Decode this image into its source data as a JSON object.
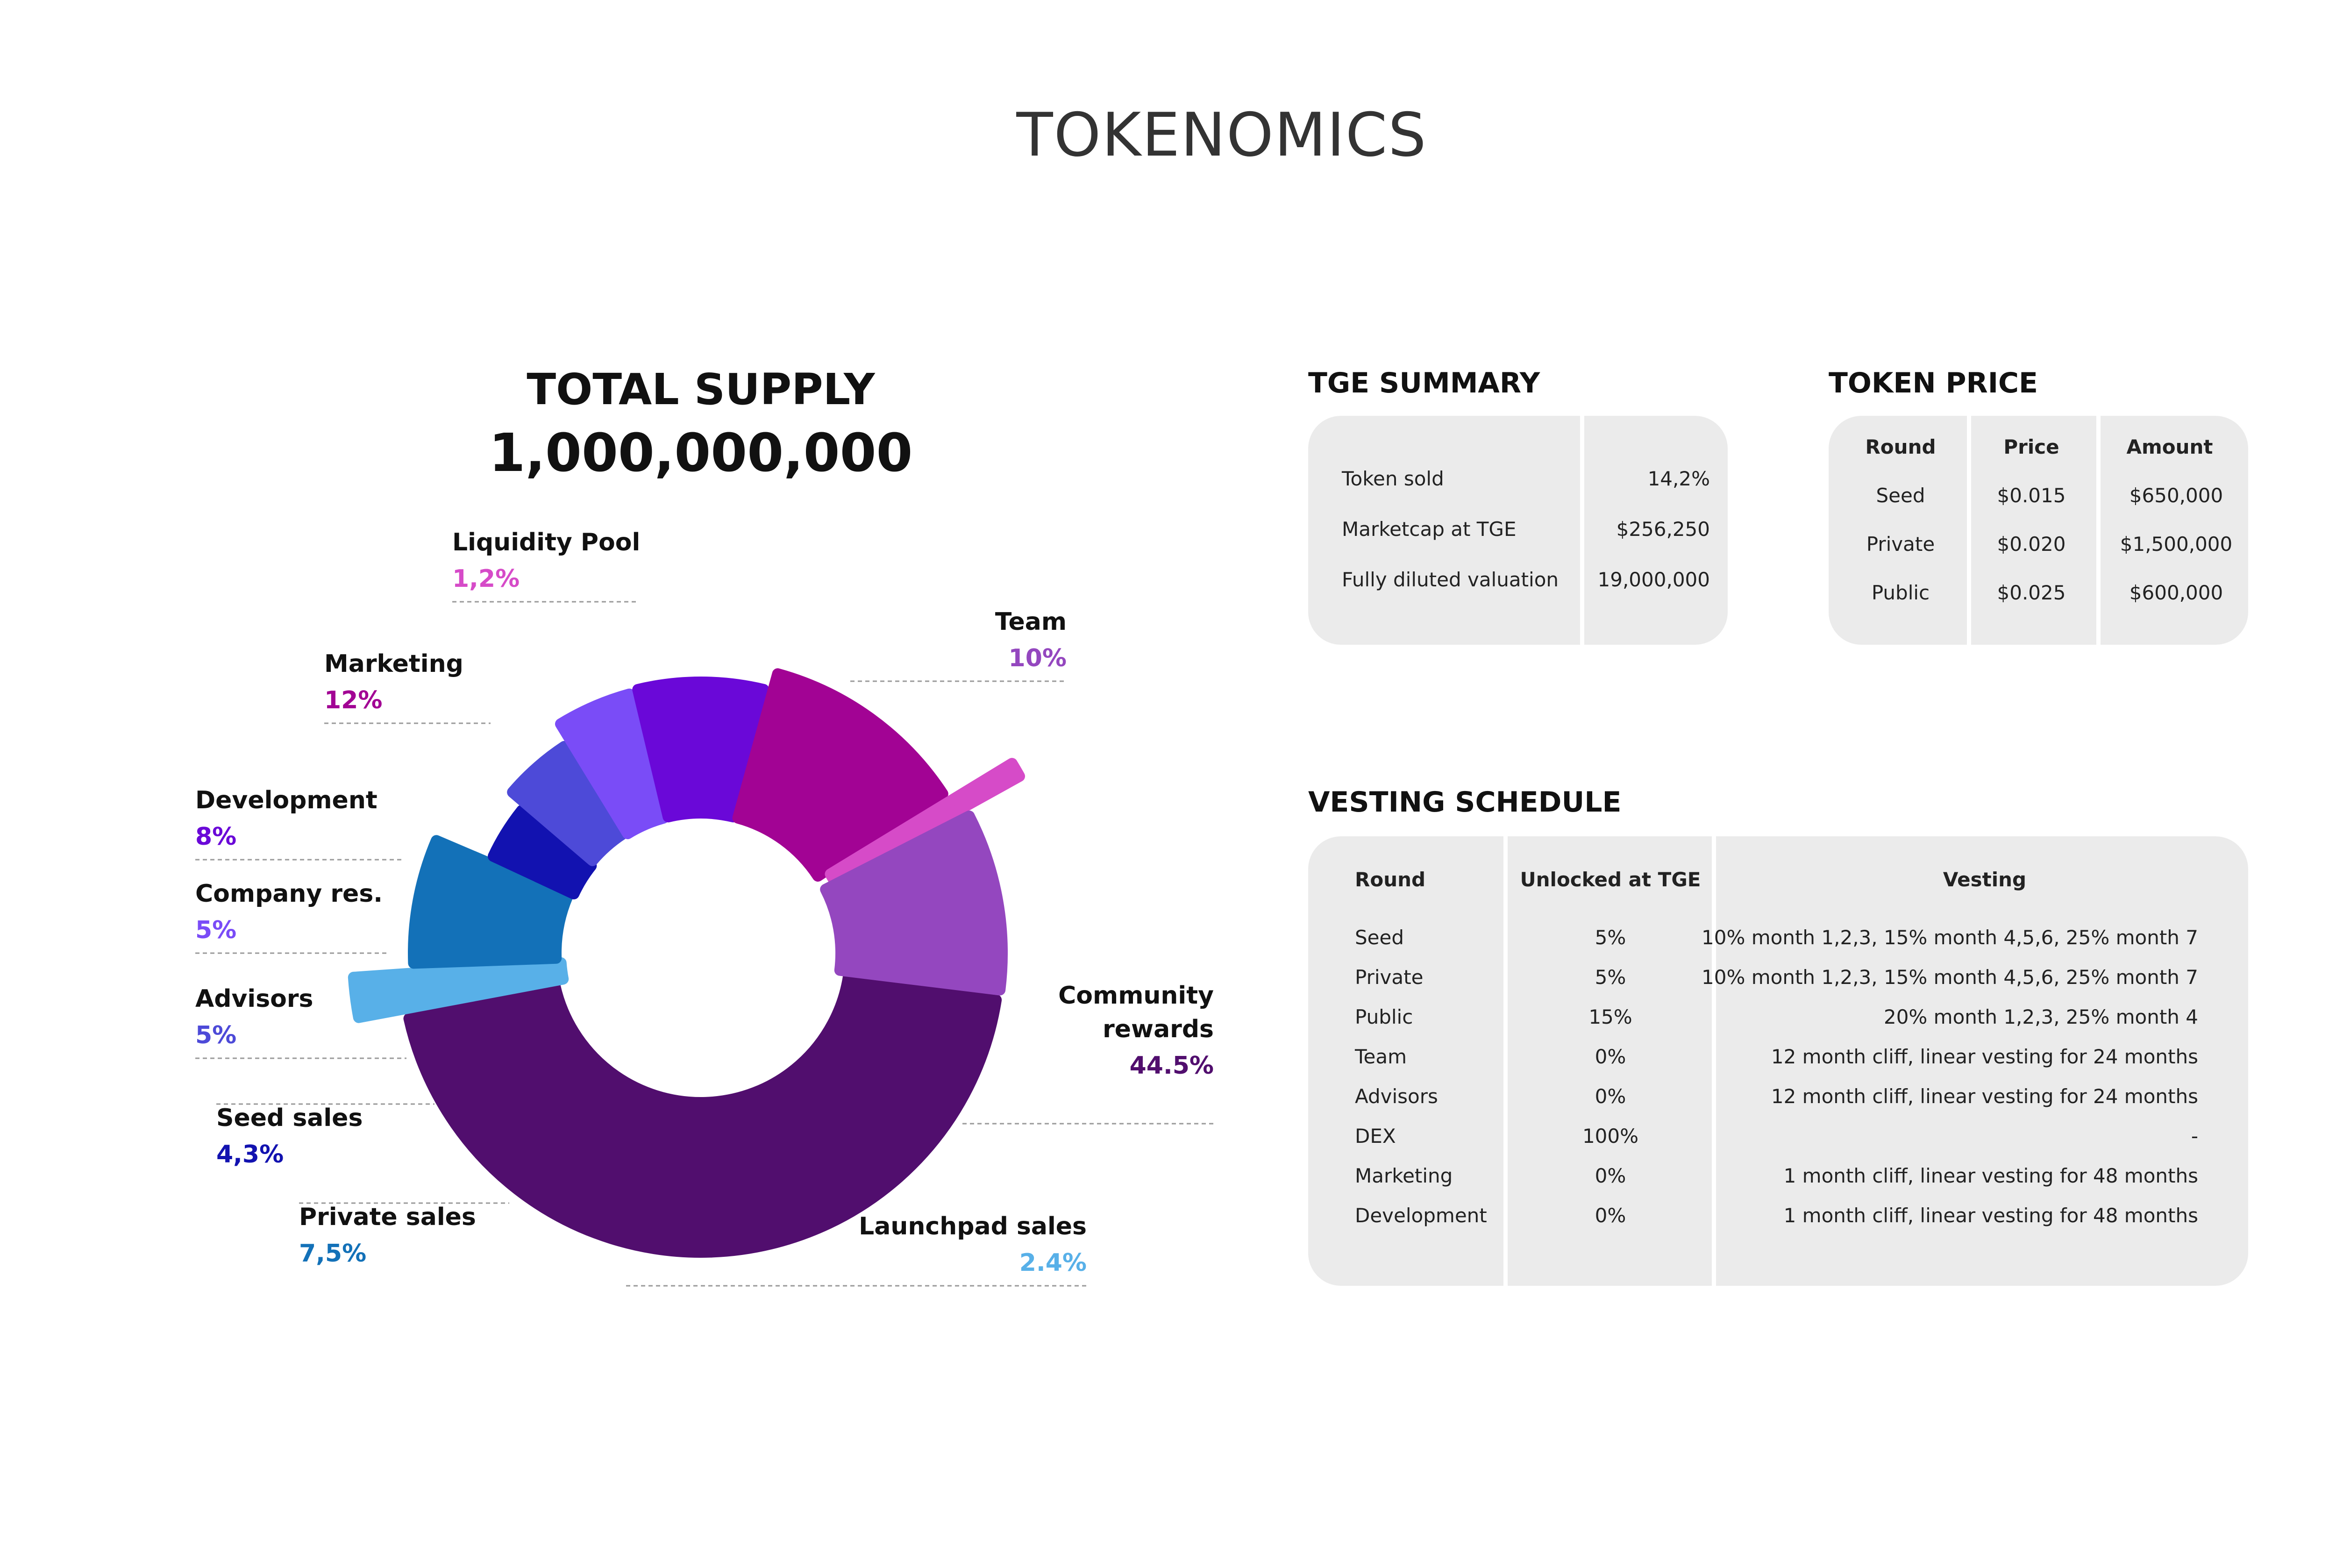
{
  "page": {
    "title": "TOKENOMICS"
  },
  "total_supply": {
    "label": "TOTAL SUPPLY",
    "value": "1,000,000,000"
  },
  "chart_data": {
    "type": "pie",
    "variant": "donut",
    "categories": [
      "Community rewards",
      "Launchpad sales",
      "Private sales",
      "Seed sales",
      "Advisors",
      "Company res.",
      "Development",
      "Marketing",
      "Liquidity Pool",
      "Team"
    ],
    "values": [
      44.5,
      2.4,
      7.5,
      4.3,
      5,
      5,
      8,
      12,
      1.2,
      10
    ],
    "slices": [
      {
        "name_lines": [
          "Community",
          "rewards"
        ],
        "percent": "44.5%",
        "value": 44.5,
        "color": "#510e6e"
      },
      {
        "name_lines": [
          "Launchpad sales"
        ],
        "percent": "2.4%",
        "value": 2.4,
        "color": "#58b0e8"
      },
      {
        "name_lines": [
          "Private sales"
        ],
        "percent": "7,5%",
        "value": 7.5,
        "color": "#1371b8"
      },
      {
        "name_lines": [
          "Seed sales"
        ],
        "percent": "4,3%",
        "value": 4.3,
        "color": "#1212b0"
      },
      {
        "name_lines": [
          "Advisors"
        ],
        "percent": "5%",
        "value": 5,
        "color": "#4d4ad8"
      },
      {
        "name_lines": [
          "Company res."
        ],
        "percent": "5%",
        "value": 5,
        "color": "#7a4cf7"
      },
      {
        "name_lines": [
          "Development"
        ],
        "percent": "8%",
        "value": 8,
        "color": "#6a08d8"
      },
      {
        "name_lines": [
          "Marketing"
        ],
        "percent": "12%",
        "value": 12,
        "color": "#a20394"
      },
      {
        "name_lines": [
          "Liquidity Pool"
        ],
        "percent": "1,2%",
        "value": 1.2,
        "color": "#d64bc8"
      },
      {
        "name_lines": [
          "Team"
        ],
        "percent": "10%",
        "value": 10,
        "color": "#9447bf"
      }
    ]
  },
  "tge_summary": {
    "title": "TGE SUMMARY",
    "rows": [
      {
        "label": "Token sold",
        "value": "14,2%"
      },
      {
        "label": "Marketcap at TGE",
        "value": "$256,250"
      },
      {
        "label": "Fully diluted valuation",
        "value": "19,000,000"
      }
    ]
  },
  "token_price": {
    "title": "TOKEN PRICE",
    "headers": [
      "Round",
      "Price",
      "Amount"
    ],
    "rows": [
      [
        "Seed",
        "$0.015",
        "$650,000"
      ],
      [
        "Private",
        "$0.020",
        "$1,500,000"
      ],
      [
        "Public",
        "$0.025",
        "$600,000"
      ]
    ]
  },
  "vesting": {
    "title": "VESTING SCHEDULE",
    "headers": [
      "Round",
      "Unlocked at TGE",
      "Vesting"
    ],
    "rows": [
      [
        "Seed",
        "5%",
        "10% month 1,2,3, 15% month 4,5,6, 25% month 7"
      ],
      [
        "Private",
        "5%",
        "10% month 1,2,3, 15% month 4,5,6, 25% month 7"
      ],
      [
        "Public",
        "15%",
        "20% month 1,2,3, 25% month 4"
      ],
      [
        "Team",
        "0%",
        "12 month cliff, linear vesting for 24 months"
      ],
      [
        "Advisors",
        "0%",
        "12 month cliff, linear vesting for 24 months"
      ],
      [
        "DEX",
        "100%",
        "-"
      ],
      [
        "Marketing",
        "0%",
        "1 month cliff, linear vesting for 48 months"
      ],
      [
        "Development",
        "0%",
        "1 month cliff, linear vesting for 48 months"
      ]
    ]
  }
}
